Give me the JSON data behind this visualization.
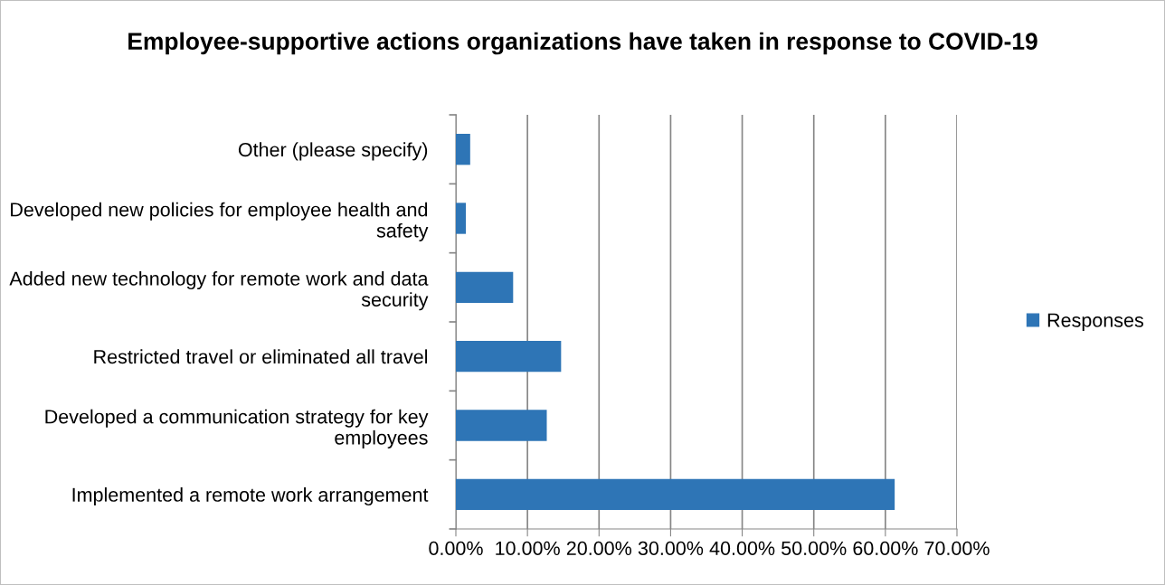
{
  "chart_data": {
    "type": "bar",
    "orientation": "horizontal",
    "title": "Employee-supportive actions organizations have taken in response to COVID-19",
    "categories": [
      "Other (please specify)",
      "Developed new policies for employee health and safety",
      "Added new technology for remote work and data security",
      "Restricted travel or eliminated all travel",
      "Developed a communication strategy for key employees",
      "Implemented a remote work arrangement"
    ],
    "series": [
      {
        "name": "Responses",
        "color": "#2e75b6",
        "values": [
          2.0,
          1.4,
          8.0,
          14.7,
          12.7,
          61.3
        ]
      }
    ],
    "xlim": [
      0,
      70
    ],
    "xticks": [
      {
        "value": 0,
        "label": "0.00%"
      },
      {
        "value": 10,
        "label": "10.00%"
      },
      {
        "value": 20,
        "label": "20.00%"
      },
      {
        "value": 30,
        "label": "30.00%"
      },
      {
        "value": 40,
        "label": "40.00%"
      },
      {
        "value": 50,
        "label": "50.00%"
      },
      {
        "value": 60,
        "label": "60.00%"
      },
      {
        "value": 70,
        "label": "70.00%"
      }
    ],
    "grid": "x",
    "legend": "right"
  }
}
